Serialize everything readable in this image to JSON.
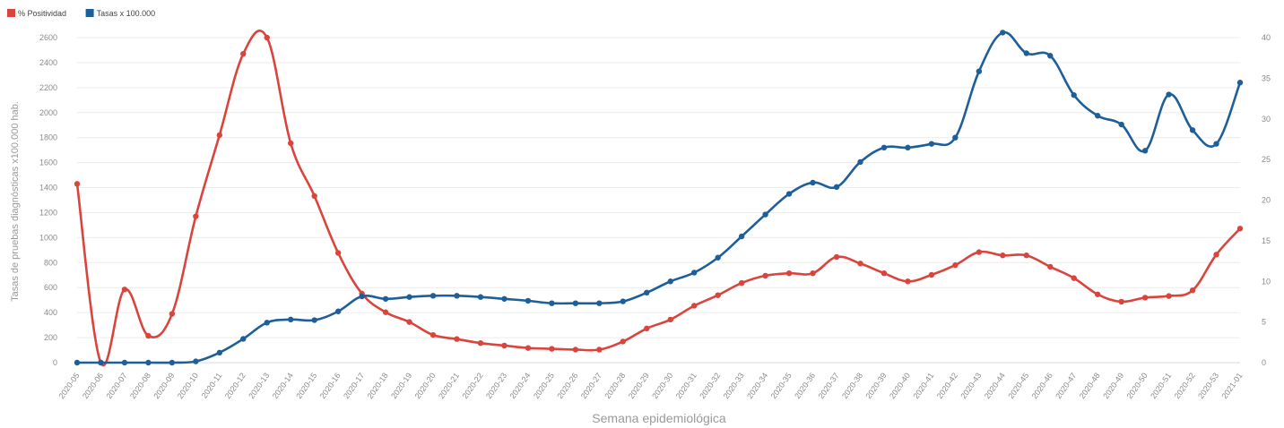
{
  "legend": {
    "items": [
      {
        "label": "% Positividad",
        "color": "#d9453d"
      },
      {
        "label": "Tasas x 100.000",
        "color": "#1f5f99"
      }
    ]
  },
  "chart_data": {
    "type": "line",
    "xlabel": "Semana epidemiológica",
    "ylabel_left": "Tasas de pruebas diagnósticas x100.000 hab.",
    "ylabel_right": "",
    "ylim_left": [
      0,
      2600
    ],
    "ylim_right": [
      0,
      40
    ],
    "yticks_left": [
      0,
      200,
      400,
      600,
      800,
      1000,
      1200,
      1400,
      1600,
      1800,
      2000,
      2200,
      2400,
      2600
    ],
    "yticks_right": [
      0,
      5,
      10,
      15,
      20,
      25,
      30,
      35,
      40
    ],
    "categories": [
      "2020-05",
      "2020-06",
      "2020-07",
      "2020-08",
      "2020-09",
      "2020-10",
      "2020-11",
      "2020-12",
      "2020-13",
      "2020-14",
      "2020-15",
      "2020-16",
      "2020-17",
      "2020-18",
      "2020-19",
      "2020-20",
      "2020-21",
      "2020-22",
      "2020-23",
      "2020-24",
      "2020-25",
      "2020-26",
      "2020-27",
      "2020-28",
      "2020-29",
      "2020-30",
      "2020-31",
      "2020-32",
      "2020-33",
      "2020-34",
      "2020-35",
      "2020-36",
      "2020-37",
      "2020-38",
      "2020-39",
      "2020-40",
      "2020-41",
      "2020-42",
      "2020-43",
      "2020-44",
      "2020-45",
      "2020-46",
      "2020-47",
      "2020-48",
      "2020-49",
      "2020-50",
      "2020-51",
      "2020-52",
      "2020-53",
      "2021-01"
    ],
    "series": [
      {
        "name": "% Positividad",
        "axis": "right",
        "color": "#d9453d",
        "values": [
          22.0,
          0.0,
          9.0,
          3.3,
          6.0,
          18.0,
          28.0,
          38.0,
          40.0,
          27.0,
          20.5,
          13.5,
          8.5,
          6.2,
          5.0,
          3.4,
          2.9,
          2.4,
          2.1,
          1.8,
          1.7,
          1.6,
          1.6,
          2.6,
          4.2,
          5.3,
          7.0,
          8.3,
          9.8,
          10.7,
          11.0,
          11.0,
          13.0,
          12.2,
          11.0,
          10.0,
          10.8,
          12.0,
          13.6,
          13.2,
          13.2,
          11.8,
          10.4,
          8.4,
          7.5,
          8.0,
          8.2,
          8.9,
          13.3,
          16.5
        ]
      },
      {
        "name": "Tasas x 100.000",
        "axis": "left",
        "color": "#1f5f99",
        "values": [
          0,
          0,
          0,
          0,
          0,
          10,
          80,
          190,
          320,
          345,
          340,
          410,
          530,
          510,
          525,
          535,
          535,
          525,
          510,
          495,
          475,
          475,
          475,
          490,
          560,
          650,
          720,
          840,
          1010,
          1185,
          1350,
          1440,
          1405,
          1605,
          1720,
          1720,
          1750,
          1800,
          2330,
          2640,
          2475,
          2455,
          2140,
          1975,
          1905,
          1695,
          2145,
          1860,
          1750,
          2240
        ]
      }
    ]
  }
}
